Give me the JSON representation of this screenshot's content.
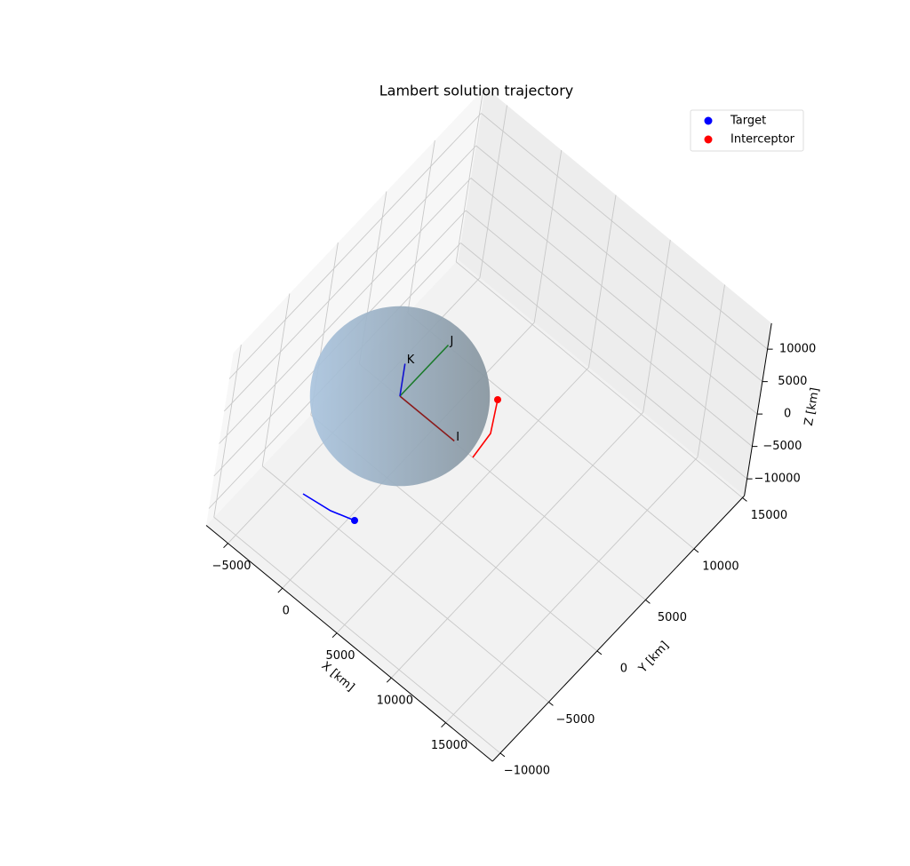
{
  "chart_data": {
    "type": "line3d",
    "title": "Lambert solution trajectory",
    "xlabel": "X [km]",
    "ylabel": "Y [km]",
    "zlabel": "Z [km]",
    "xlim": [
      -7000,
      19300
    ],
    "ylim": [
      -10800,
      15200
    ],
    "zlim": [
      -12600,
      14000
    ],
    "xticks": [
      {
        "value": -5000,
        "label": "−5000"
      },
      0,
      5000,
      10000,
      15000
    ],
    "yticks": [
      {
        "value": -10000,
        "label": "−10000"
      },
      {
        "value": -5000,
        "label": "−5000"
      },
      0,
      5000,
      10000,
      15000
    ],
    "zticks": [
      {
        "value": -10000,
        "label": "−10000"
      },
      {
        "value": -5000,
        "label": "−5000"
      },
      0,
      5000,
      10000
    ],
    "grid": true,
    "legend": "upper right",
    "earth": {
      "radius": 6378,
      "color": "#9fb4c8"
    },
    "frame_axes": {
      "length": 5000,
      "axes": [
        {
          "label": "I",
          "color": "#8b1a1a"
        },
        {
          "label": "J",
          "color": "#1a7a2a"
        },
        {
          "label": "K",
          "color": "#1010d0"
        }
      ]
    },
    "series": [
      {
        "name": "Target",
        "color": "#0000ff",
        "x": [
          -217,
          2029,
          3744
        ],
        "y": [
          -9756,
          -9436,
          -8887
        ],
        "z": [
          0,
          0,
          0
        ],
        "marker": {
          "x": 3744,
          "y": -8887,
          "z": 0
        }
      },
      {
        "name": "Interceptor",
        "color": "#ff0000",
        "x": [
          5214,
          6498,
          6754
        ],
        "y": [
          4232,
          2055,
          -68
        ],
        "z": [
          0,
          0,
          0
        ],
        "marker": {
          "x": 5214,
          "y": 4232,
          "z": 0
        }
      }
    ]
  }
}
